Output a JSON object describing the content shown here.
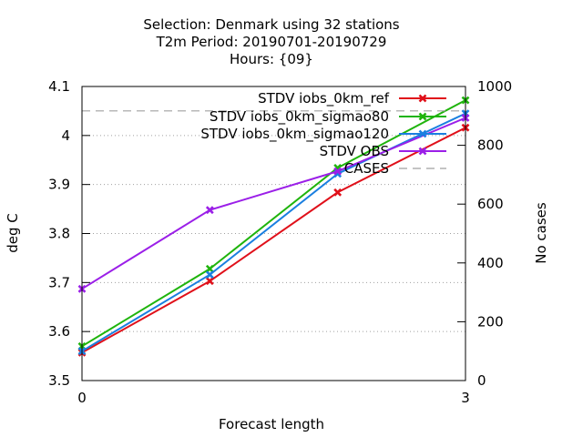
{
  "chart_data": {
    "type": "line",
    "title": [
      "Selection: Denmark using    32 stations",
      "T2m   Period: 20190701-20190729",
      "Hours: {09}"
    ],
    "xlabel": "Forecast length",
    "ylabel": "deg C",
    "y2label": "No cases",
    "x": [
      0,
      1,
      2,
      3
    ],
    "xticks": [
      "0",
      "3"
    ],
    "xlim": [
      0,
      3
    ],
    "ylim": [
      3.5,
      4.1
    ],
    "yticks": [
      "3.5",
      "3.6",
      "3.7",
      "3.8",
      "3.9",
      "4",
      "4.1"
    ],
    "y2lim": [
      0,
      1000
    ],
    "y2ticks": [
      "0",
      "200",
      "400",
      "600",
      "800",
      "1000"
    ],
    "grid": true,
    "legend_position": "top-right",
    "series": [
      {
        "name": "STDV iobs_0km_ref",
        "color": "#e0101a",
        "marker": "x",
        "axis": "y",
        "values": [
          3.557,
          3.703,
          3.884,
          4.016
        ]
      },
      {
        "name": "STDV iobs_0km_sigmao80",
        "color": "#1fb40c",
        "marker": "x",
        "axis": "y",
        "values": [
          3.57,
          3.728,
          3.934,
          4.072
        ]
      },
      {
        "name": "STDV iobs_0km_sigmao120",
        "color": "#1a7fe0",
        "marker": "x",
        "axis": "y",
        "values": [
          3.56,
          3.716,
          3.922,
          4.045
        ]
      },
      {
        "name": "STDV OBS",
        "color": "#9b1fe8",
        "marker": "x",
        "axis": "y",
        "values": [
          3.687,
          3.848,
          3.927,
          4.036
        ]
      },
      {
        "name": "CASES",
        "color": "#a0a0a0",
        "marker": "none",
        "dash": true,
        "axis": "y2",
        "values": [
          917,
          917,
          917,
          917
        ]
      }
    ]
  }
}
